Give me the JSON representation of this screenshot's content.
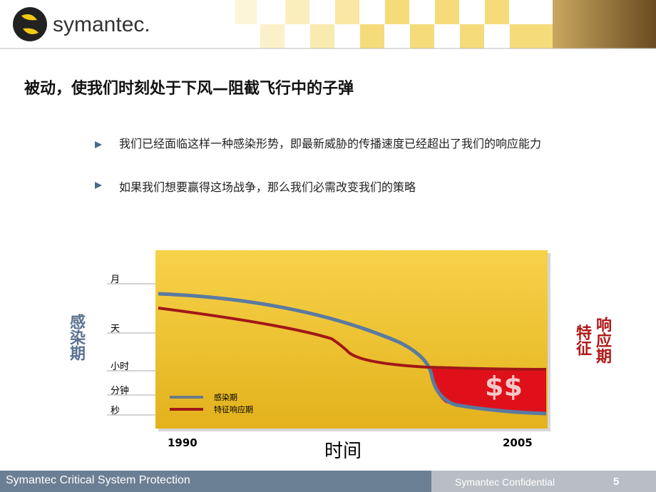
{
  "header": {
    "logo": "symantec."
  },
  "title": "被动，使我们时刻处于下风—阻截飞行中的子弹",
  "bullets": [
    "我们已经面临这样一种感染形势，即最新威胁的传播速度已经超出了我们的响应能力",
    "如果我们想要赢得这场战争，那么我们必需改变我们的策略"
  ],
  "chart": {
    "y_labels": [
      "月",
      "天",
      "小时",
      "分钟",
      "秒"
    ],
    "left_axis_title": "感染期",
    "right_axis_title": [
      "特征",
      "响应期"
    ],
    "x_labels": [
      "1990",
      "2005"
    ],
    "x_axis_title": "时间",
    "legend": [
      "感染期",
      "特征响应期"
    ],
    "money": "$$"
  },
  "footer": {
    "left": "Symantec Critical System Protection",
    "confidential": "Symantec Confidential",
    "page": "5"
  }
}
